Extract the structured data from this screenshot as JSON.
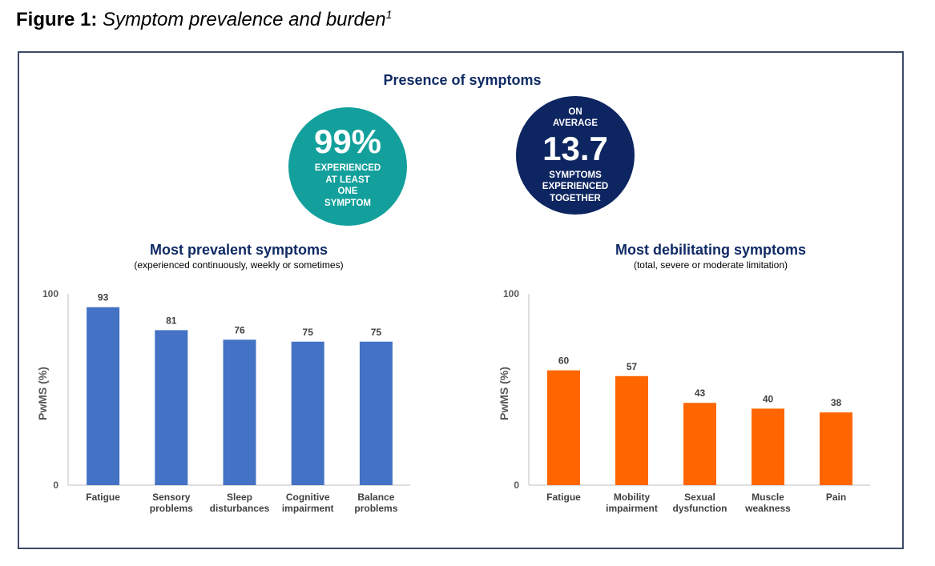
{
  "figure": {
    "label": "Figure 1:",
    "title": "Symptom prevalence and burden",
    "sup": "1"
  },
  "presence": {
    "title": "Presence of symptoms",
    "circle1": {
      "value": "99%",
      "lines": [
        "EXPERIENCED",
        "AT LEAST",
        "ONE",
        "SYMPTOM"
      ],
      "color": "#13a09c"
    },
    "circle2": {
      "pre": [
        "ON",
        "AVERAGE"
      ],
      "value": "13.7",
      "post": [
        "SYMPTOMS",
        "EXPERIENCED",
        "TOGETHER"
      ],
      "color": "#0d2560"
    }
  },
  "chart_data": [
    {
      "type": "bar",
      "title": "Most prevalent symptoms",
      "subtitle": "(experienced continuously, weekly or sometimes)",
      "categories": [
        [
          "Fatigue"
        ],
        [
          "Sensory",
          "problems"
        ],
        [
          "Sleep",
          "disturbances"
        ],
        [
          "Cognitive",
          "impairment"
        ],
        [
          "Balance",
          "problems"
        ]
      ],
      "values": [
        93,
        81,
        76,
        75,
        75
      ],
      "ylabel": "PwMS (%)",
      "ylim": [
        0,
        100
      ],
      "yticks": [
        "0",
        "100"
      ],
      "color": "#4472c4",
      "grid": false
    },
    {
      "type": "bar",
      "title": "Most debilitating symptoms",
      "subtitle": "(total, severe or moderate limitation)",
      "categories": [
        [
          "Fatigue"
        ],
        [
          "Mobility",
          "impairment"
        ],
        [
          "Sexual",
          "dysfunction"
        ],
        [
          "Muscle",
          "weakness"
        ],
        [
          "Pain"
        ]
      ],
      "values": [
        60,
        57,
        43,
        40,
        38
      ],
      "ylabel": "PwMS (%)",
      "ylim": [
        0,
        100
      ],
      "yticks": [
        "0",
        "100"
      ],
      "color": "#ff6600",
      "grid": false
    }
  ]
}
